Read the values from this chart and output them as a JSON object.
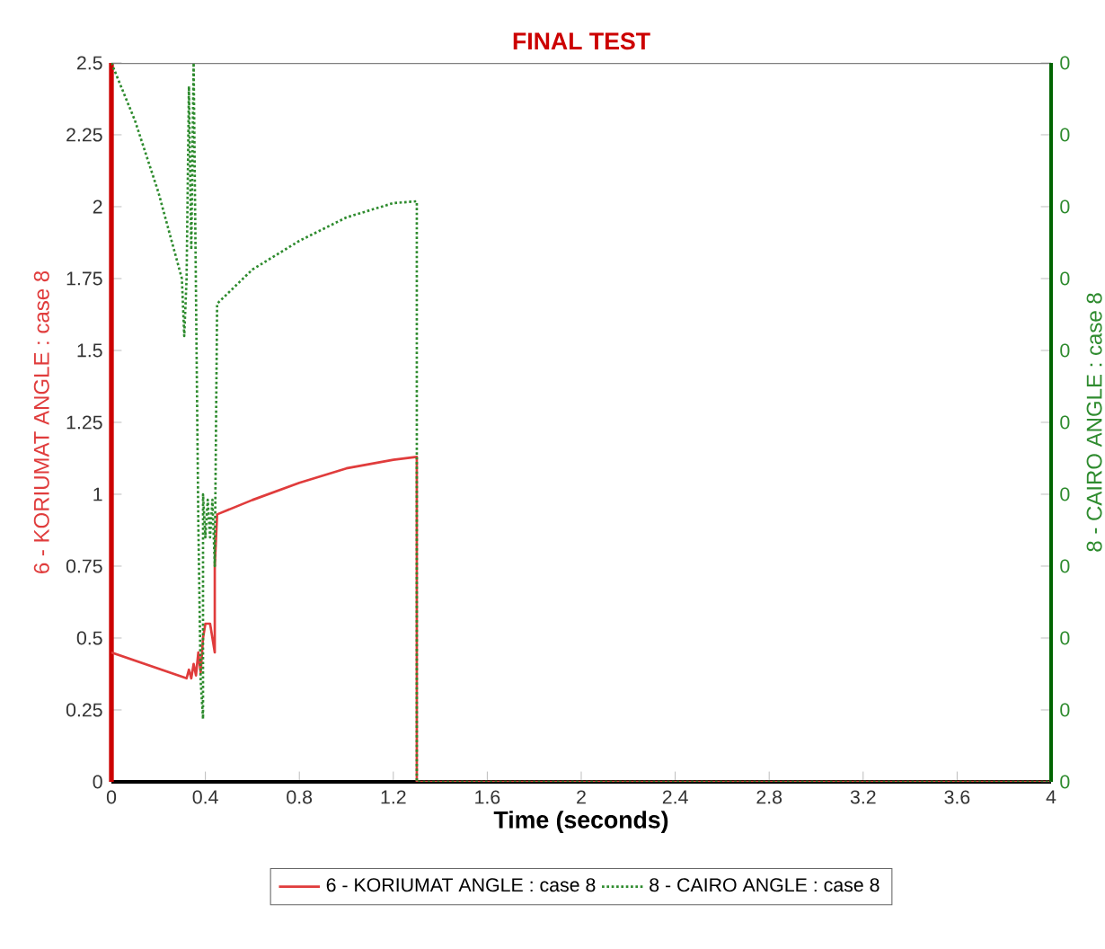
{
  "chart_data": {
    "type": "line",
    "title": "FINAL TEST",
    "xlabel": "Time (seconds)",
    "ylabel": "6 - KORIUMAT ANGLE : case 8",
    "y2label": "8 - CAIRO ANGLE : case 8",
    "xlim": [
      0,
      4
    ],
    "xticks": [
      0,
      0.4,
      0.8,
      1.2,
      1.6,
      2,
      2.4,
      2.8,
      3.2,
      3.6,
      4
    ],
    "ylim": [
      0,
      2.5
    ],
    "yticks": [
      0,
      0.25,
      0.5,
      0.75,
      1,
      1.25,
      1.5,
      1.75,
      2,
      2.25,
      2.5
    ],
    "y2lim": [
      0,
      0.4
    ],
    "y2ticks": [
      {
        "value": 0,
        "label": "0"
      },
      {
        "value": 0.04,
        "label": "0"
      },
      {
        "value": 0.08,
        "label": "0"
      },
      {
        "value": 0.12,
        "label": "0"
      },
      {
        "value": 0.16,
        "label": "0"
      },
      {
        "value": 0.2,
        "label": "0"
      },
      {
        "value": 0.24,
        "label": "0"
      },
      {
        "value": 0.28,
        "label": "0"
      },
      {
        "value": 0.32,
        "label": "0"
      },
      {
        "value": 0.36,
        "label": "0"
      },
      {
        "value": 0.4,
        "label": "0"
      }
    ],
    "legend": "bottom",
    "grid": false,
    "marker": "none",
    "series": [
      {
        "name": "6 - KORIUMAT ANGLE : case 8",
        "color": "#e03c3c",
        "line_style": "solid",
        "x": [
          0,
          0.32,
          0.33,
          0.34,
          0.35,
          0.36,
          0.37,
          0.38,
          0.39,
          0.4,
          0.42,
          0.43,
          0.44,
          0.44,
          0.45,
          0.6,
          0.8,
          1.0,
          1.2,
          1.3,
          1.3,
          4
        ],
        "values": [
          0.45,
          0.36,
          0.39,
          0.36,
          0.41,
          0.37,
          0.45,
          0.38,
          0.5,
          0.55,
          0.55,
          0.5,
          0.45,
          0.75,
          0.93,
          0.98,
          1.04,
          1.09,
          1.12,
          1.13,
          0,
          0
        ]
      },
      {
        "name": "8 - CAIRO ANGLE : case 8",
        "color": "#2e8b2e",
        "line_style": "dotted",
        "axis": "y2",
        "x": [
          0,
          0.1,
          0.2,
          0.3,
          0.31,
          0.32,
          0.33,
          0.34,
          0.35,
          0.37,
          0.38,
          0.39,
          0.39,
          0.4,
          0.41,
          0.42,
          0.43,
          0.44,
          0.45,
          0.6,
          0.8,
          1.0,
          1.2,
          1.3,
          1.3,
          4
        ],
        "values": [
          0.4,
          0.368,
          0.328,
          0.28,
          0.248,
          0.28,
          0.387,
          0.296,
          0.4,
          0.144,
          0.056,
          0.035,
          0.16,
          0.136,
          0.157,
          0.136,
          0.157,
          0.12,
          0.266,
          0.285,
          0.301,
          0.314,
          0.322,
          0.323,
          0,
          0
        ]
      }
    ]
  }
}
